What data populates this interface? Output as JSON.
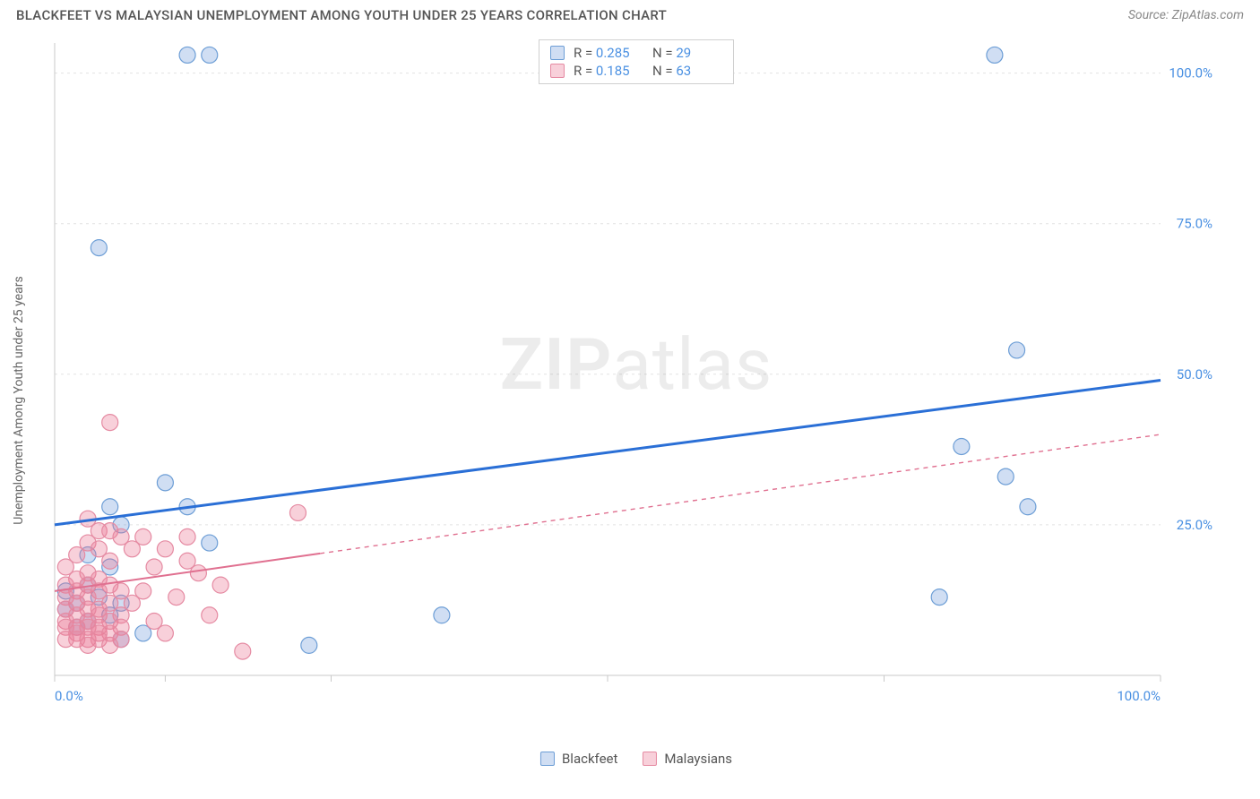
{
  "title": "BLACKFEET VS MALAYSIAN UNEMPLOYMENT AMONG YOUTH UNDER 25 YEARS CORRELATION CHART",
  "source_label": "Source:",
  "source_name": "ZipAtlas.com",
  "y_axis_label": "Unemployment Among Youth under 25 years",
  "watermark_a": "ZIP",
  "watermark_b": "atlas",
  "chart": {
    "type": "scatter",
    "xlim": [
      0,
      100
    ],
    "ylim": [
      0,
      105
    ],
    "x_ticks": [
      0,
      10,
      25,
      50,
      75,
      100
    ],
    "y_ticks": [
      25,
      50,
      75,
      100
    ],
    "x_tick_labels_visible": {
      "0": "0.0%",
      "100": "100.0%"
    },
    "y_tick_labels": [
      "25.0%",
      "50.0%",
      "75.0%",
      "100.0%"
    ],
    "background_color": "#ffffff",
    "grid_color": "#e2e2e2",
    "axis_color": "#c9c9c9",
    "tick_label_color": "#4a90e2",
    "tick_label_fontsize": 15,
    "series": [
      {
        "name": "Blackfeet",
        "marker_fill": "rgba(120,160,220,0.35)",
        "marker_stroke": "#6d9ed6",
        "marker_radius": 9,
        "trend_color": "#2a6fd6",
        "trend_width": 3,
        "trend_dash": "none",
        "trend_start": [
          0,
          25
        ],
        "trend_end": [
          100,
          49
        ],
        "R": "0.285",
        "N": "29",
        "points": [
          [
            12,
            103
          ],
          [
            14,
            103
          ],
          [
            85,
            103
          ],
          [
            4,
            71
          ],
          [
            87,
            54
          ],
          [
            82,
            38
          ],
          [
            86,
            33
          ],
          [
            88,
            28
          ],
          [
            80,
            13
          ],
          [
            10,
            32
          ],
          [
            5,
            28
          ],
          [
            12,
            28
          ],
          [
            35,
            10
          ],
          [
            23,
            5
          ],
          [
            6,
            25
          ],
          [
            3,
            15
          ],
          [
            5,
            18
          ],
          [
            3,
            20
          ],
          [
            1,
            14
          ],
          [
            2,
            12
          ],
          [
            4,
            13
          ],
          [
            6,
            12
          ],
          [
            8,
            7
          ],
          [
            5,
            10
          ],
          [
            6,
            6
          ],
          [
            3,
            9
          ],
          [
            2,
            8
          ],
          [
            1,
            11
          ],
          [
            14,
            22
          ]
        ]
      },
      {
        "name": "Malaysians",
        "marker_fill": "rgba(235,120,150,0.35)",
        "marker_stroke": "#e58aa2",
        "marker_radius": 9,
        "trend_color": "#e07090",
        "trend_width": 2,
        "trend_dash": "5,5",
        "trend_solid_until": 24,
        "trend_start": [
          0,
          14
        ],
        "trend_end": [
          100,
          40
        ],
        "R": "0.185",
        "N": "63",
        "points": [
          [
            5,
            42
          ],
          [
            22,
            27
          ],
          [
            12,
            23
          ],
          [
            8,
            23
          ],
          [
            4,
            24
          ],
          [
            3,
            26
          ],
          [
            5,
            24
          ],
          [
            6,
            23
          ],
          [
            3,
            22
          ],
          [
            4,
            21
          ],
          [
            2,
            20
          ],
          [
            5,
            19
          ],
          [
            1,
            18
          ],
          [
            3,
            17
          ],
          [
            2,
            16
          ],
          [
            4,
            16
          ],
          [
            1,
            15
          ],
          [
            3,
            15
          ],
          [
            5,
            15
          ],
          [
            2,
            14
          ],
          [
            6,
            14
          ],
          [
            4,
            14
          ],
          [
            1,
            13
          ],
          [
            3,
            13
          ],
          [
            2,
            12
          ],
          [
            5,
            12
          ],
          [
            4,
            11
          ],
          [
            1,
            11
          ],
          [
            3,
            11
          ],
          [
            2,
            10
          ],
          [
            6,
            10
          ],
          [
            4,
            10
          ],
          [
            1,
            9
          ],
          [
            3,
            9
          ],
          [
            5,
            9
          ],
          [
            2,
            8
          ],
          [
            4,
            8
          ],
          [
            1,
            8
          ],
          [
            3,
            8
          ],
          [
            6,
            8
          ],
          [
            2,
            7
          ],
          [
            4,
            7
          ],
          [
            5,
            7
          ],
          [
            1,
            6
          ],
          [
            3,
            6
          ],
          [
            2,
            6
          ],
          [
            4,
            6
          ],
          [
            6,
            6
          ],
          [
            5,
            5
          ],
          [
            3,
            5
          ],
          [
            10,
            21
          ],
          [
            9,
            18
          ],
          [
            7,
            21
          ],
          [
            12,
            19
          ],
          [
            8,
            14
          ],
          [
            9,
            9
          ],
          [
            7,
            12
          ],
          [
            11,
            13
          ],
          [
            13,
            17
          ],
          [
            15,
            15
          ],
          [
            10,
            7
          ],
          [
            17,
            4
          ],
          [
            14,
            10
          ]
        ]
      }
    ]
  },
  "legend": {
    "r_label": "R =",
    "n_label": "N ="
  }
}
